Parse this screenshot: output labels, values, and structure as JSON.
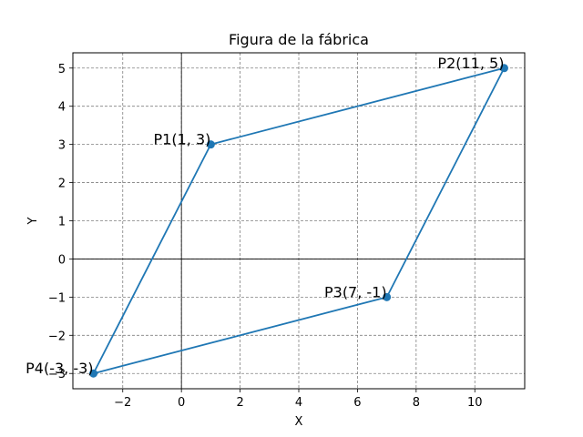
{
  "chart_data": {
    "type": "line",
    "title": "Figura de la fábrica",
    "xlabel": "X",
    "ylabel": "Y",
    "xlim": [
      -3.7,
      11.7
    ],
    "ylim": [
      -3.4,
      5.4
    ],
    "xticks": [
      -2,
      0,
      2,
      4,
      6,
      8,
      10
    ],
    "yticks": [
      -3,
      -2,
      -1,
      0,
      1,
      2,
      3,
      4,
      5
    ],
    "xtick_labels": [
      "−2",
      "0",
      "2",
      "4",
      "6",
      "8",
      "10"
    ],
    "ytick_labels": [
      "−3",
      "−2",
      "−1",
      "0",
      "1",
      "2",
      "3",
      "4",
      "5"
    ],
    "grid": true,
    "reference_lines": {
      "x": 0,
      "y": 0
    },
    "series": [
      {
        "x": [
          1,
          11,
          7,
          -3,
          1
        ],
        "y": [
          3,
          5,
          -1,
          -3,
          3
        ],
        "color": "#1f77b4",
        "marker": "circle"
      }
    ],
    "points": [
      {
        "label": "P1(1, 3)",
        "x": 1,
        "y": 3
      },
      {
        "label": "P2(11, 5)",
        "x": 11,
        "y": 5
      },
      {
        "label": "P3(7, -1)",
        "x": 7,
        "y": -1
      },
      {
        "label": "P4(-3, -3)",
        "x": -3,
        "y": -3
      }
    ],
    "colors": {
      "line": "#1f77b4",
      "grid": "#808080",
      "reference": "#000000"
    }
  }
}
